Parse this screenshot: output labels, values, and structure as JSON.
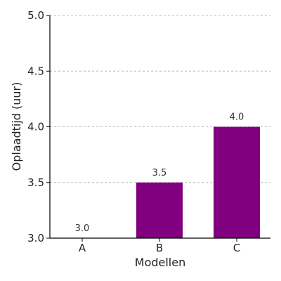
{
  "chart_data": {
    "type": "bar",
    "categories": [
      "A",
      "B",
      "C"
    ],
    "values": [
      3.0,
      3.5,
      4.0
    ],
    "data_labels": [
      "3.0",
      "3.5",
      "4.0"
    ],
    "xlabel": "Modellen",
    "ylabel": "Oplaadtijd (uur)",
    "ylim": [
      3.0,
      5.0
    ],
    "yticks": [
      3.0,
      3.5,
      4.0,
      4.5,
      5.0
    ],
    "ytick_labels": [
      "3.0",
      "3.5",
      "4.0",
      "4.5",
      "5.0"
    ],
    "grid": "horizontal-dashed",
    "bar_color": "#800080"
  }
}
